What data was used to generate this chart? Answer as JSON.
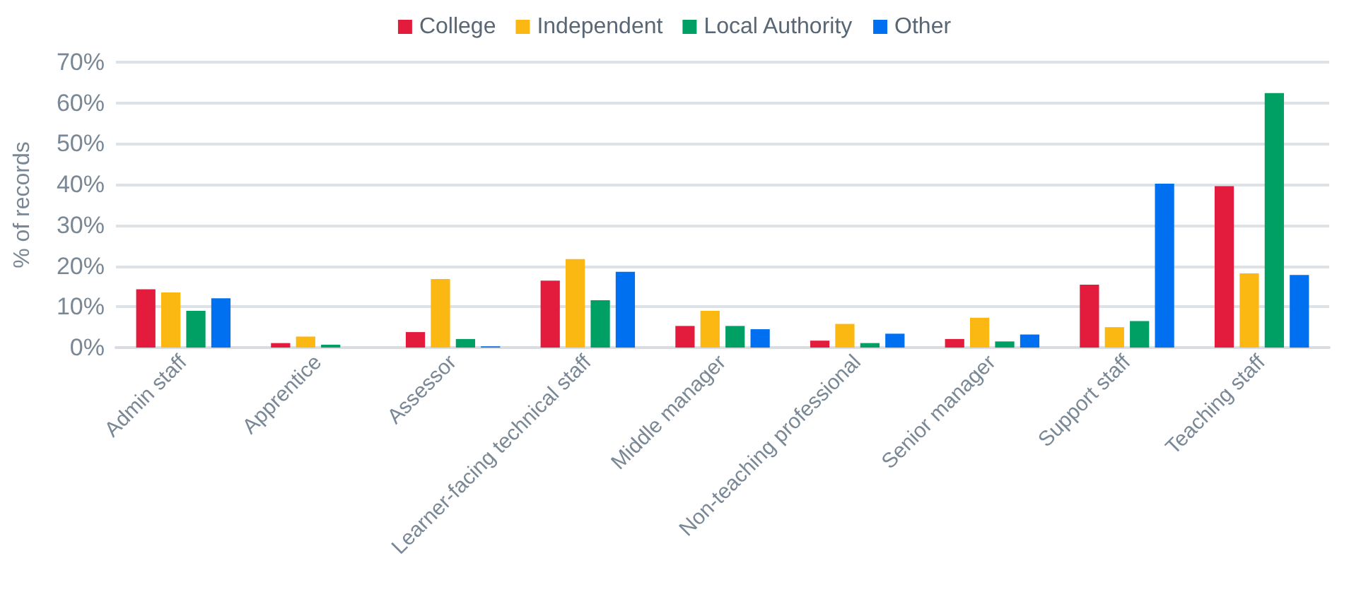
{
  "chart_data": {
    "type": "bar",
    "ylabel": "% of records",
    "categories": [
      "Admin staff",
      "Apprentice",
      "Assessor",
      "Learner-facing technical staff",
      "Middle manager",
      "Non-teaching professional",
      "Senior manager",
      "Support staff",
      "Teaching staff"
    ],
    "series": [
      {
        "name": "College",
        "color": "#e31c3d",
        "values": [
          14.3,
          1.1,
          3.8,
          16.4,
          5.3,
          1.7,
          2.1,
          15.4,
          39.6
        ]
      },
      {
        "name": "Independent",
        "color": "#fbb812",
        "values": [
          13.5,
          2.7,
          16.8,
          21.7,
          9.0,
          5.8,
          7.3,
          5.0,
          18.2
        ]
      },
      {
        "name": "Local Authority",
        "color": "#00a065",
        "values": [
          9.0,
          0.7,
          2.1,
          11.6,
          5.3,
          1.1,
          1.5,
          6.5,
          62.4
        ]
      },
      {
        "name": "Other",
        "color": "#0070f0",
        "values": [
          12.1,
          0,
          0.3,
          18.6,
          4.5,
          3.4,
          3.2,
          40.2,
          17.8
        ]
      }
    ],
    "ylim": [
      0,
      70
    ],
    "yticks": [
      {
        "value": 0,
        "label": "0%"
      },
      {
        "value": 10,
        "label": "10%"
      },
      {
        "value": 20,
        "label": "20%"
      },
      {
        "value": 30,
        "label": "30%"
      },
      {
        "value": 40,
        "label": "40%"
      },
      {
        "value": 50,
        "label": "50%"
      },
      {
        "value": 60,
        "label": "60%"
      },
      {
        "value": 70,
        "label": "70%"
      }
    ],
    "grid": "y",
    "legend": "top"
  }
}
